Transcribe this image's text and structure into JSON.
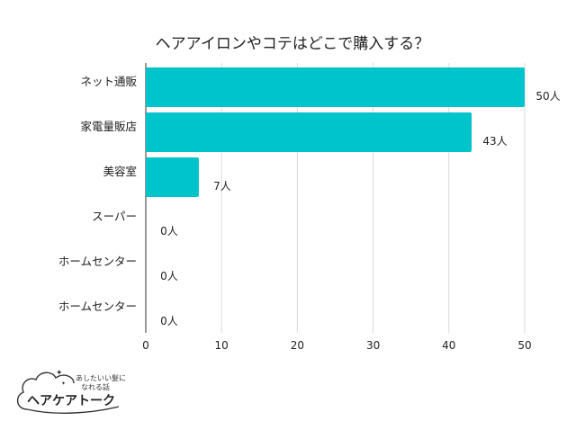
{
  "chart_data": {
    "type": "bar",
    "orientation": "horizontal",
    "title": "ヘアアイロンやコテはどこで購入する？",
    "categories": [
      "ネット通販",
      "家電量販店",
      "美容室",
      "スーパー",
      "ホームセンター",
      "ホームセンター"
    ],
    "values": [
      50,
      43,
      7,
      0,
      0,
      0
    ],
    "value_labels": [
      "50人",
      "43人",
      "7人",
      "0人",
      "0人",
      "0人"
    ],
    "xlim": [
      0,
      50
    ],
    "xticks": [
      0,
      10,
      20,
      30,
      40,
      50
    ],
    "xlabel": "",
    "ylabel": "",
    "grid": true,
    "bar_color": "#00c4cc"
  },
  "logo": {
    "tagline_line1": "あしたいい髪に",
    "tagline_line2": "なれる話",
    "name": "ヘアケアトーク",
    "stroke_color": "#333333"
  }
}
